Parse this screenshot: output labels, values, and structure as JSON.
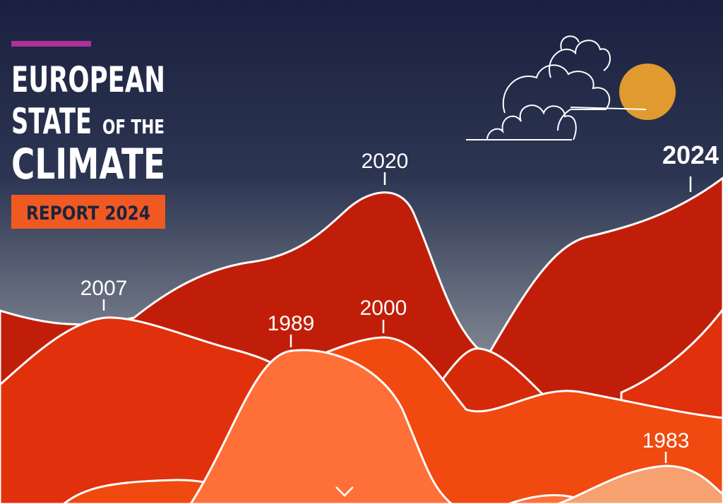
{
  "header": {
    "title_line_1": "EUROPEAN",
    "title_line_2": "STATE",
    "title_line_2_small": "OF THE",
    "title_line_3": "CLIMATE",
    "badge": "REPORT 2024"
  },
  "peaks": [
    {
      "label": "2007"
    },
    {
      "label": "2020"
    },
    {
      "label": "1989"
    },
    {
      "label": "2000"
    },
    {
      "label": "2024"
    },
    {
      "label": "1983"
    }
  ]
}
